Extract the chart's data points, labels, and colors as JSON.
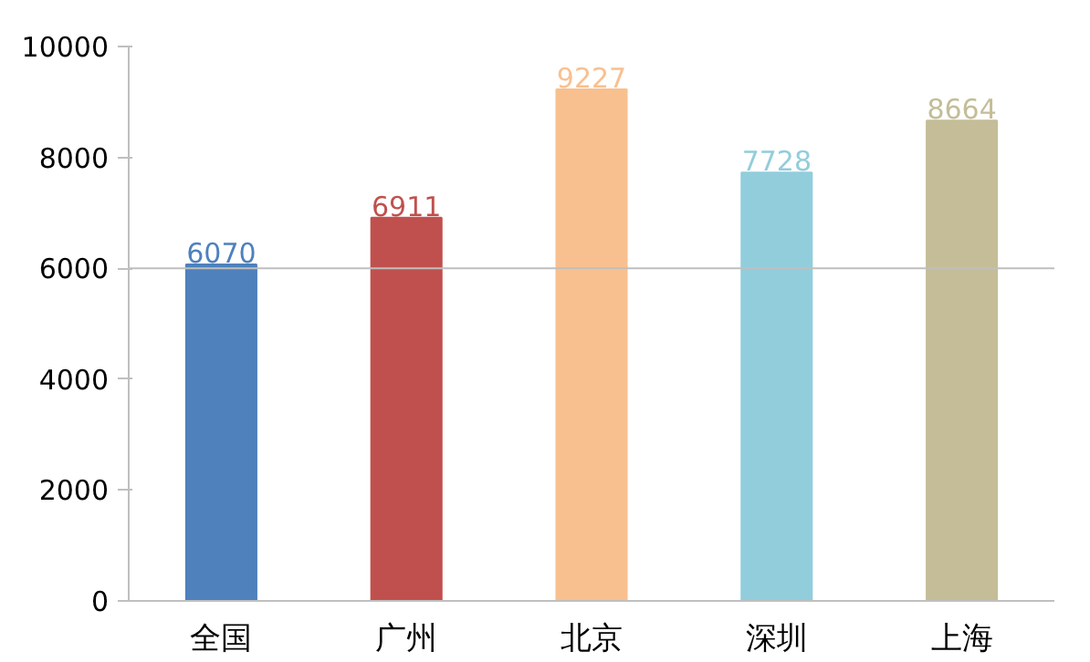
{
  "chart_data": {
    "type": "bar",
    "categories": [
      "全国",
      "广州",
      "北京",
      "深圳",
      "上海"
    ],
    "values": [
      6070,
      6911,
      9227,
      7728,
      8664
    ],
    "colors": [
      "#4f81bd",
      "#c0504d",
      "#f9c08f",
      "#92cddc",
      "#c4bd97"
    ],
    "ylim": [
      0,
      10000
    ],
    "yticks": [
      0,
      2000,
      4000,
      6000,
      8000,
      10000
    ],
    "grid": false,
    "data_labels": true,
    "ref_lines": [
      {
        "axis": "y",
        "value": 6000,
        "color": "#bfbfbf"
      }
    ]
  }
}
